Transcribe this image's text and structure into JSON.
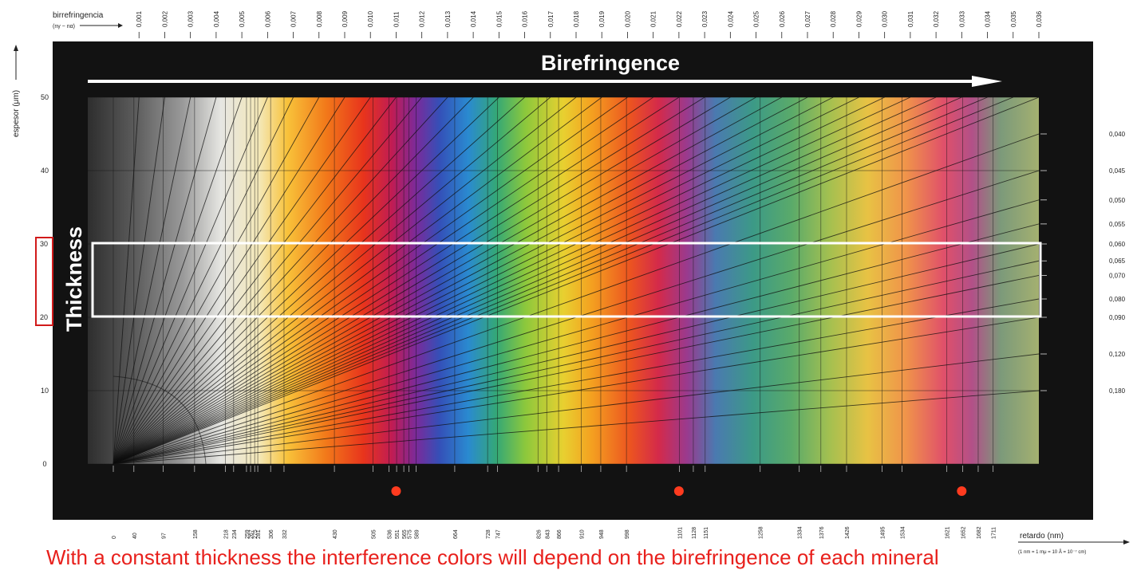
{
  "labels": {
    "birefringence_axis": "birrefringencia",
    "birefringence_formula": "(nγ − nα)",
    "thickness_axis": "espesor (μm)",
    "retardation_axis": "retardo (nm)",
    "retardation_units": "(1 nm = 1 mμ = 10 Å = 10⁻⁷ cm)",
    "banner": "Birefringence",
    "thickness": "Thickness",
    "caption": "With a constant thickness the interference colors will depend on the birefringence of each mineral"
  },
  "chart_data": {
    "type": "heatmap",
    "title": "",
    "xlabel": "retardo (nm)",
    "ylabel": "espesor (μm)",
    "x_range_nm": [
      0,
      1800
    ],
    "y_range_um": [
      0,
      50
    ],
    "thickness_ticks": [
      "0",
      "10",
      "20",
      "30",
      "40",
      "50"
    ],
    "birefringence_top": [
      "0,001",
      "0,002",
      "0,003",
      "0,004",
      "0,005",
      "0,006",
      "0,007",
      "0,008",
      "0,009",
      "0,010",
      "0,011",
      "0,012",
      "0,013",
      "0,014",
      "0,015",
      "0,016",
      "0,017",
      "0,018",
      "0,019",
      "0,020",
      "0,021",
      "0,022",
      "0,023",
      "0,024",
      "0,025",
      "0,026",
      "0,027",
      "0,028",
      "0,029",
      "0,030",
      "0,031",
      "0,032",
      "0,033",
      "0,034",
      "0,035",
      "0,036"
    ],
    "birefringence_right": [
      "0,040",
      "0,045",
      "0,050",
      "0,055",
      "0,060",
      "0,065",
      "0,070",
      "0,080",
      "0,090",
      "0,120",
      "0,180"
    ],
    "retardation_ticks": [
      "0",
      "40",
      "97",
      "158",
      "218",
      "234",
      "259",
      "267",
      "275",
      "281",
      "306",
      "332",
      "430",
      "505",
      "536",
      "551",
      "565",
      "575",
      "589",
      "664",
      "728",
      "747",
      "826",
      "843",
      "866",
      "910",
      "948",
      "998",
      "1101",
      "1128",
      "1151",
      "1258",
      "1334",
      "1376",
      "1426",
      "1495",
      "1534",
      "1621",
      "1652",
      "1682",
      "1711"
    ],
    "highlight_thickness_um": [
      20,
      30
    ],
    "order_markers_nm": [
      550,
      1100,
      1650
    ]
  },
  "colors": {
    "caption": "#e8201c",
    "highlight_box": "#ffffff",
    "axis_box": "#d11a1a",
    "order_dot": "#ff3b1f",
    "frame": "#111111"
  }
}
